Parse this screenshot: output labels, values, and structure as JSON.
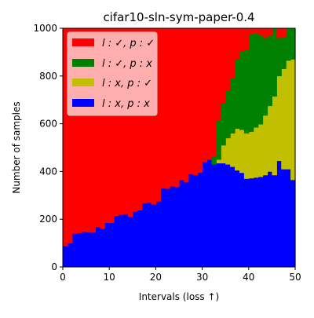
{
  "chart_data": {
    "type": "area",
    "title": "cifar10-sln-sym-paper-0.4",
    "xlabel": "Intervals (loss  ↑)",
    "ylabel": "Number of samples",
    "xlim": [
      0,
      50
    ],
    "ylim": [
      0,
      1000
    ],
    "xticks": [
      "0",
      "10",
      "20",
      "30",
      "40",
      "50"
    ],
    "yticks": [
      "0",
      "200",
      "400",
      "600",
      "800",
      "1000"
    ],
    "grid": false,
    "legend_position": "top-left",
    "stacking": "stacked",
    "x_intervals": [
      0,
      1,
      2,
      3,
      4,
      5,
      6,
      7,
      8,
      9,
      10,
      11,
      12,
      13,
      14,
      15,
      16,
      17,
      18,
      19,
      20,
      21,
      22,
      23,
      24,
      25,
      26,
      27,
      28,
      29,
      30,
      31,
      32,
      33,
      34,
      35,
      36,
      37,
      38,
      39,
      40,
      41,
      42,
      43,
      44,
      45,
      46,
      47,
      48,
      49
    ],
    "series": [
      {
        "name": "l : x, p : x",
        "color": "#0000ff",
        "values": [
          88,
          100,
          140,
          142,
          148,
          145,
          145,
          168,
          160,
          185,
          185,
          215,
          220,
          222,
          210,
          232,
          238,
          268,
          270,
          262,
          275,
          330,
          328,
          338,
          335,
          365,
          355,
          390,
          385,
          395,
          440,
          450,
          430,
          435,
          435,
          430,
          420,
          405,
          395,
          370,
          372,
          375,
          378,
          385,
          400,
          385,
          445,
          410,
          410,
          365
        ]
      },
      {
        "name": "l : x, p : ✓",
        "color": "#c0c000",
        "values": [
          0,
          0,
          0,
          0,
          0,
          0,
          0,
          0,
          0,
          0,
          0,
          0,
          0,
          0,
          0,
          0,
          0,
          0,
          0,
          0,
          0,
          0,
          0,
          0,
          0,
          0,
          0,
          0,
          0,
          0,
          0,
          0,
          0,
          15,
          75,
          110,
          140,
          175,
          180,
          190,
          195,
          210,
          220,
          250,
          275,
          330,
          355,
          420,
          455,
          505
        ]
      },
      {
        "name": "l : ✓, p : x",
        "color": "#008000",
        "values": [
          0,
          0,
          0,
          0,
          0,
          0,
          0,
          0,
          0,
          0,
          0,
          0,
          0,
          0,
          0,
          0,
          0,
          0,
          0,
          0,
          0,
          0,
          0,
          0,
          0,
          0,
          0,
          0,
          0,
          0,
          0,
          0,
          35,
          165,
          175,
          200,
          230,
          290,
          330,
          350,
          410,
          395,
          375,
          325,
          295,
          285,
          160,
          135,
          135,
          130
        ]
      },
      {
        "name": "l : ✓, p : ✓",
        "color": "#ff0000",
        "values": [
          912,
          900,
          860,
          858,
          852,
          855,
          855,
          832,
          840,
          815,
          815,
          785,
          780,
          778,
          790,
          768,
          762,
          732,
          730,
          738,
          725,
          670,
          672,
          662,
          665,
          635,
          645,
          610,
          615,
          605,
          560,
          550,
          535,
          385,
          315,
          260,
          210,
          130,
          95,
          90,
          23,
          20,
          27,
          40,
          30,
          0,
          40,
          35,
          0,
          0
        ]
      }
    ]
  },
  "legend": {
    "items": [
      {
        "label": "l : ✓, p : ✓",
        "color": "#ff0000"
      },
      {
        "label": "l : ✓, p : x",
        "color": "#008000"
      },
      {
        "label": "l : x, p : ✓",
        "color": "#c0c000"
      },
      {
        "label": "l : x, p : x",
        "color": "#0000ff"
      }
    ]
  }
}
